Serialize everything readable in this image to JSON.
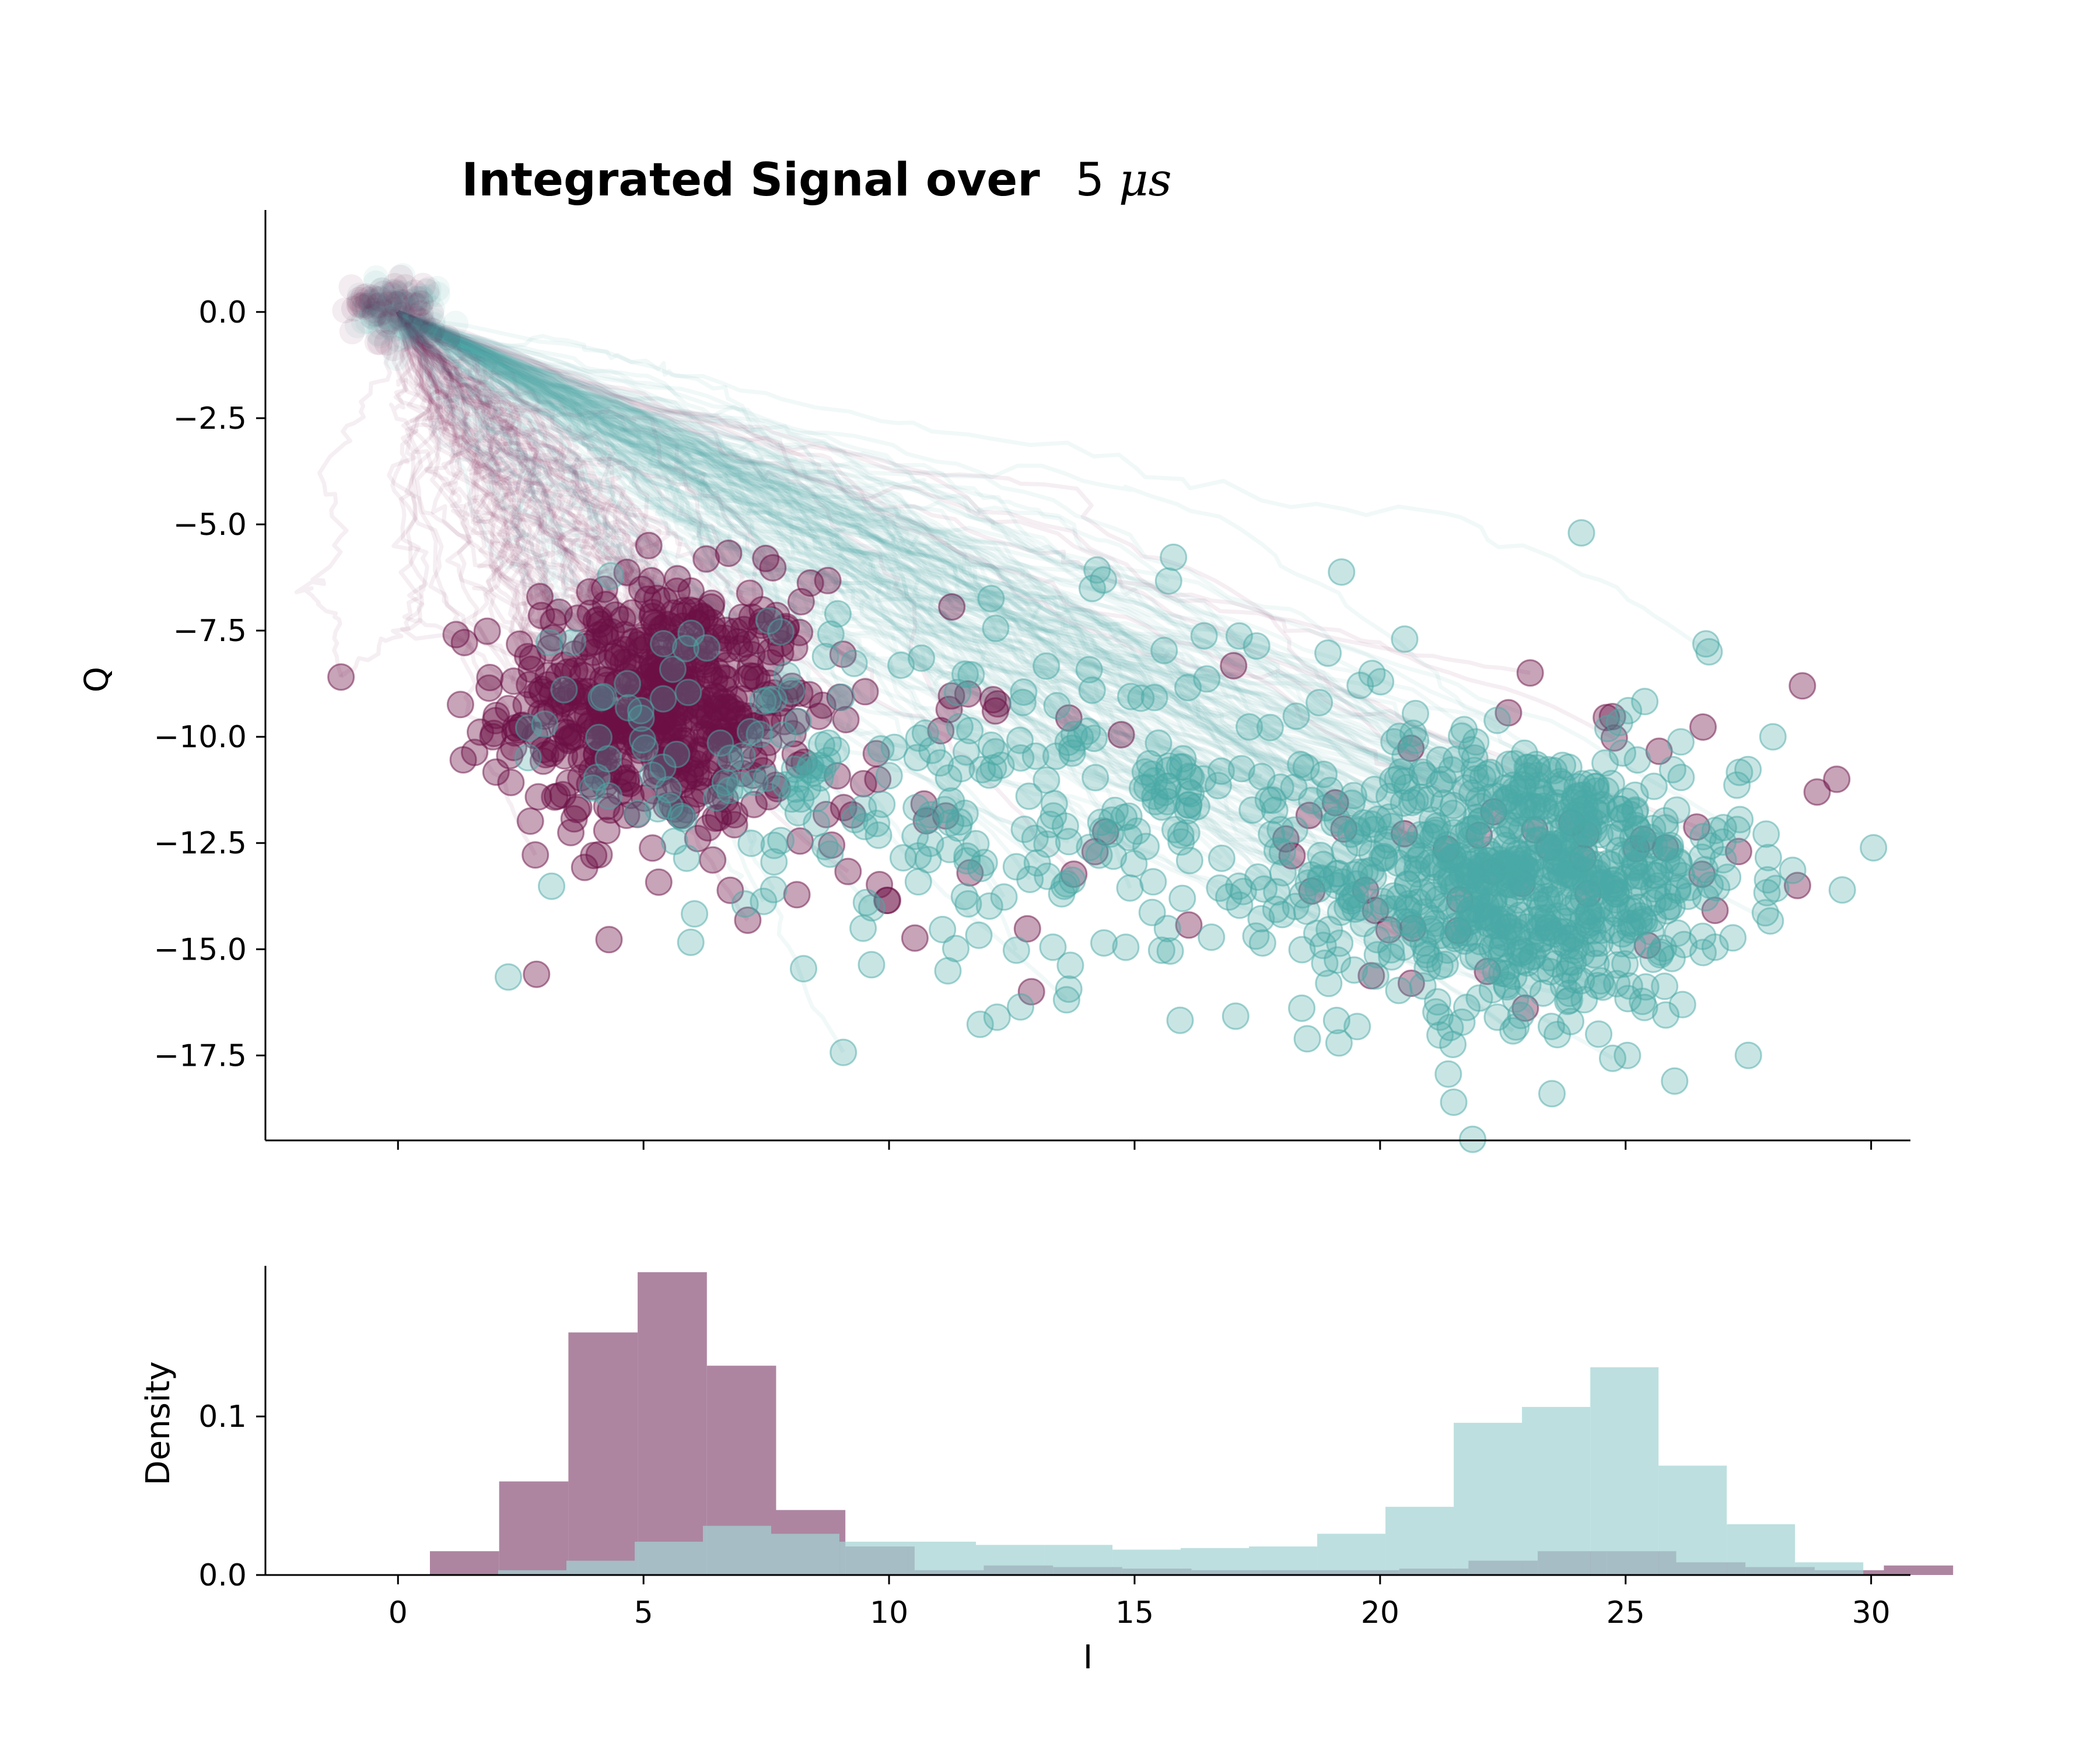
{
  "chart_data": [
    {
      "type": "scatter",
      "title_main": "Integrated Signal over",
      "title_math_num": "5",
      "title_math_mu": "μs",
      "xlabel": "",
      "ylabel": "Q",
      "xlim": [
        -2.7,
        30.8
      ],
      "ylim": [
        -19.5,
        2.4
      ],
      "yticks": [
        0.0,
        -2.5,
        -5.0,
        -7.5,
        -10.0,
        -12.5,
        -15.0,
        -17.5
      ],
      "ytick_labels": [
        "0.0",
        "−2.5",
        "−5.0",
        "−7.5",
        "−10.0",
        "−12.5",
        "−15.0",
        "−17.5"
      ],
      "xticks": [
        0,
        5,
        10,
        15,
        20,
        25,
        30
      ],
      "grid": false,
      "series": [
        {
          "color": "#6b0f45",
          "clusters": [
            {
              "cx": 5.3,
              "cy": -9.3,
              "sx": 1.6,
              "sy": 1.5,
              "n": 520
            },
            {
              "cx": 9.5,
              "cy": -11.0,
              "sx": 2.5,
              "sy": 2.0,
              "n": 50
            },
            {
              "cx": 22.5,
              "cy": -12.5,
              "sx": 2.8,
              "sy": 2.0,
              "n": 45
            }
          ],
          "trajectory_end_points": [
            [
              28.6,
              -8.8
            ],
            [
              28.9,
              -11.3
            ],
            [
              29.3,
              -11.0
            ],
            [
              28.5,
              -13.5
            ],
            [
              12.9,
              -16.0
            ],
            [
              27.3,
              -12.7
            ]
          ]
        },
        {
          "color": "#4aaaa5",
          "clusters": [
            {
              "cx": 23.0,
              "cy": -13.3,
              "sx": 2.2,
              "sy": 1.6,
              "n": 720
            },
            {
              "cx": 13.5,
              "cy": -11.6,
              "sx": 3.8,
              "sy": 2.2,
              "n": 260
            },
            {
              "cx": 6.0,
              "cy": -10.0,
              "sx": 1.8,
              "sy": 1.6,
              "n": 60
            }
          ],
          "outliers": [
            [
              24.1,
              -5.2
            ],
            [
              20.5,
              -7.7
            ],
            [
              26.7,
              -8.0
            ],
            [
              28.0,
              -10.0
            ],
            [
              12.2,
              -16.6
            ],
            [
              21.5,
              -18.6
            ],
            [
              23.5,
              -18.4
            ],
            [
              27.5,
              -17.5
            ]
          ]
        }
      ]
    },
    {
      "type": "bar",
      "title": "",
      "xlabel": "I",
      "ylabel": "Density",
      "xlim": [
        -2.7,
        30.8
      ],
      "ylim": [
        0,
        0.195
      ],
      "yticks": [
        0.0,
        0.1
      ],
      "ytick_labels": [
        "0.0",
        "0.1"
      ],
      "xticks": [
        0,
        5,
        10,
        15,
        20,
        25,
        30
      ],
      "xtick_labels": [
        "0",
        "5",
        "10",
        "15",
        "20",
        "25",
        "30"
      ],
      "bin_edges": [
        0.65,
        2.05,
        3.45,
        4.85,
        6.25,
        7.65,
        9.05,
        10.45,
        11.85,
        13.25,
        14.65,
        16.05,
        17.45,
        18.85,
        20.25,
        21.65,
        23.05,
        24.45,
        25.85,
        27.25,
        28.65,
        30.05
      ],
      "series": [
        {
          "color": "#ad85a1",
          "bin_start": 0.65,
          "bin_width": 1.41,
          "values": [
            0.015,
            0.059,
            0.153,
            0.191,
            0.132,
            0.041,
            0.018,
            0.003,
            0.006,
            0.005,
            0.004,
            0.003,
            0.003,
            0.003,
            0.004,
            0.009,
            0.015,
            0.015,
            0.008,
            0.005,
            0.003,
            0.006
          ]
        },
        {
          "color": "#a3d3d3",
          "bin_start": 0.65,
          "bin_width": 1.39,
          "values": [
            0.0,
            0.003,
            0.009,
            0.021,
            0.031,
            0.026,
            0.021,
            0.021,
            0.019,
            0.019,
            0.016,
            0.017,
            0.018,
            0.026,
            0.043,
            0.096,
            0.106,
            0.131,
            0.069,
            0.032,
            0.008
          ]
        }
      ],
      "overlap_color": "#7a9aa4"
    }
  ]
}
